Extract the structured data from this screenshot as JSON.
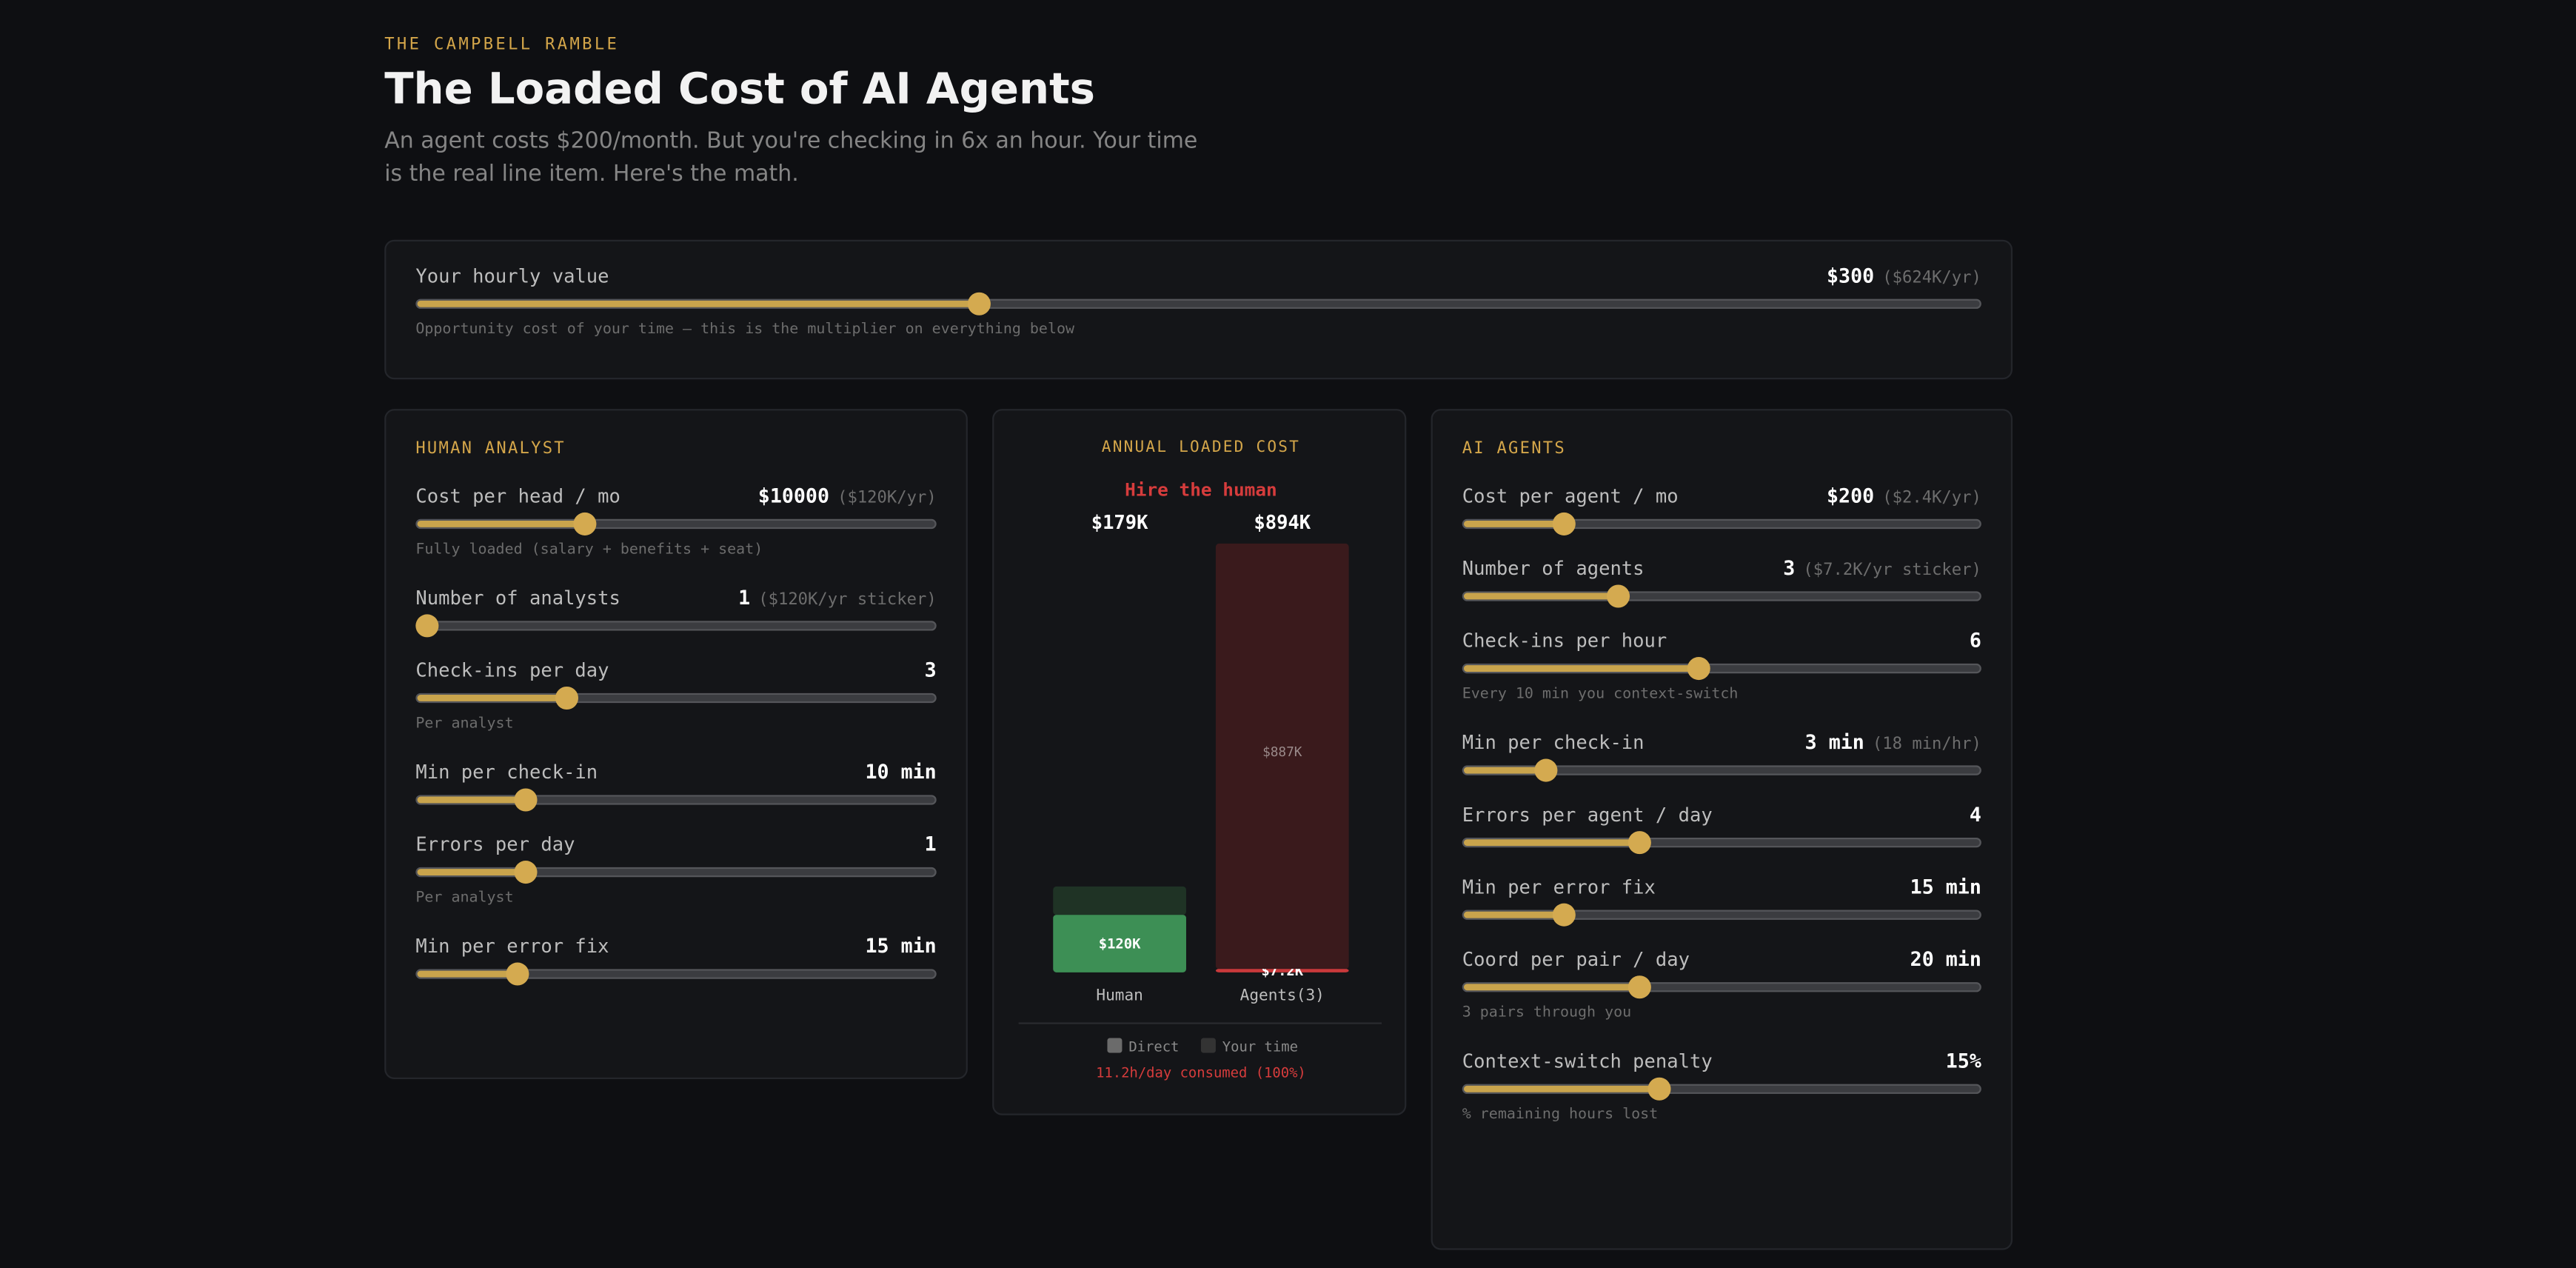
{
  "header": {
    "kicker": "THE CAMPBELL RAMBLE",
    "title": "The Loaded Cost of AI Agents",
    "subtitle": "An agent costs $200/month. But you're checking in 6x an hour. Your time is the real line item. Here's the math."
  },
  "hourly": {
    "label": "Your hourly value",
    "value": "$300",
    "extra": "($624K/yr)",
    "note": "Opportunity cost of your time — this is the multiplier on everything below"
  },
  "human": {
    "title": "HUMAN ANALYST",
    "sliders": [
      {
        "label": "Cost per head / mo",
        "value": "$10000",
        "extra": "($120K/yr)",
        "note": "Fully loaded (salary + benefits + seat)"
      },
      {
        "label": "Number of analysts",
        "value": "1",
        "extra": "($120K/yr sticker)"
      },
      {
        "label": "Check-ins per day",
        "value": "3",
        "note": "Per analyst"
      },
      {
        "label": "Min per check-in",
        "value": "10 min"
      },
      {
        "label": "Errors per day",
        "value": "1",
        "note": "Per analyst"
      },
      {
        "label": "Min per error fix",
        "value": "15 min"
      }
    ]
  },
  "chart": {
    "title": "ANNUAL LOADED COST",
    "verdict": "Hire the human",
    "categories": [
      "Human",
      "Agents(3)"
    ],
    "totals": [
      179000,
      894000
    ],
    "total_labels": [
      "$179K",
      "$894K"
    ],
    "series": [
      {
        "name": "Direct",
        "color": "#6b6b6b",
        "bar_colors": [
          "#3d8f55",
          "#c9393b"
        ],
        "values": [
          120000,
          7200
        ],
        "value_labels": [
          "$120K",
          "$7.2K"
        ]
      },
      {
        "name": "Your time",
        "color": "#333333",
        "bar_colors": [
          "#1f3325",
          "#3a1a1c"
        ],
        "values": [
          59000,
          887000
        ],
        "value_labels": [
          null,
          "$887K"
        ]
      }
    ],
    "footnote": "11.2h/day consumed (100%)"
  },
  "agents": {
    "title": "AI AGENTS",
    "sliders": [
      {
        "label": "Cost per agent / mo",
        "value": "$200",
        "extra": "($2.4K/yr)"
      },
      {
        "label": "Number of agents",
        "value": "3",
        "extra": "($7.2K/yr sticker)"
      },
      {
        "label": "Check-ins per hour",
        "value": "6",
        "note": "Every 10 min you context-switch"
      },
      {
        "label": "Min per check-in",
        "value": "3 min",
        "extra": "(18 min/hr)"
      },
      {
        "label": "Errors per agent / day",
        "value": "4"
      },
      {
        "label": "Min per error fix",
        "value": "15 min"
      },
      {
        "label": "Coord per pair / day",
        "value": "20 min",
        "note": "3 pairs through you"
      },
      {
        "label": "Context-switch penalty",
        "value": "15%",
        "note": "% remaining hours lost"
      }
    ]
  }
}
